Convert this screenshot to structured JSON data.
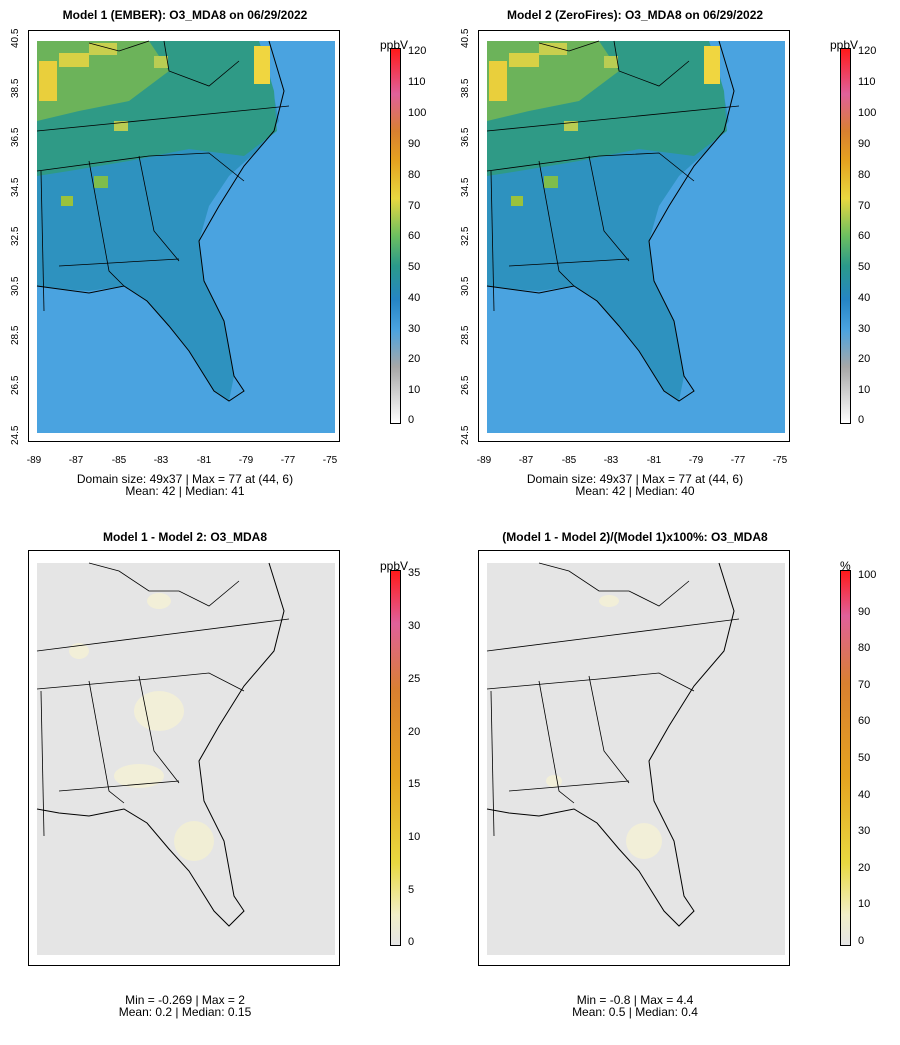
{
  "panels": [
    {
      "title": "Model 1 (EMBER): O3_MDA8 on 06/29/2022",
      "type": "field",
      "unit": "ppbV",
      "stats_line1": "Domain size: 49x37 | Max = 77 at (44, 6)",
      "stats_line2": "Mean: 42 |  Median: 41",
      "yticks": [
        "40.5",
        "38.5",
        "36.5",
        "34.5",
        "32.5",
        "30.5",
        "28.5",
        "26.5",
        "24.5"
      ],
      "xticks": [
        "-89",
        "-87",
        "-85",
        "-83",
        "-81",
        "-79",
        "-77",
        "-75"
      ],
      "colorbar_ticks": [
        "120",
        "110",
        "100",
        "90",
        "80",
        "70",
        "60",
        "50",
        "40",
        "30",
        "20",
        "10",
        "0"
      ]
    },
    {
      "title": "Model 2 (ZeroFires): O3_MDA8 on 06/29/2022",
      "type": "field",
      "unit": "ppbV",
      "stats_line1": "Domain size: 49x37 | Max = 77 at (44, 6)",
      "stats_line2": "Mean: 42 |  Median: 40",
      "yticks": [
        "40.5",
        "38.5",
        "36.5",
        "34.5",
        "32.5",
        "30.5",
        "28.5",
        "26.5",
        "24.5"
      ],
      "xticks": [
        "-89",
        "-87",
        "-85",
        "-83",
        "-81",
        "-79",
        "-77",
        "-75"
      ],
      "colorbar_ticks": [
        "120",
        "110",
        "100",
        "90",
        "80",
        "70",
        "60",
        "50",
        "40",
        "30",
        "20",
        "10",
        "0"
      ]
    },
    {
      "title": "Model 1 - Model 2: O3_MDA8",
      "type": "diff",
      "unit": "ppbV",
      "stats_line1": "Min = -0.269 | Max = 2",
      "stats_line2": "Mean: 0.2 |  Median: 0.15",
      "colorbar_ticks": [
        "35",
        "30",
        "25",
        "20",
        "15",
        "10",
        "5",
        "0"
      ]
    },
    {
      "title": "(Model 1 - Model 2)/(Model 1)x100%: O3_MDA8",
      "type": "diff",
      "unit": "%",
      "stats_line1": "Min = -0.8 | Max = 4.4",
      "stats_line2": "Mean: 0.5 |  Median: 0.4",
      "colorbar_ticks": [
        "100",
        "90",
        "80",
        "70",
        "60",
        "50",
        "40",
        "30",
        "20",
        "10",
        "0"
      ]
    }
  ],
  "colors": {
    "ocean": "#4aa3e0",
    "land_low": "#2f8fc7",
    "land_mid": "#2a9a8a",
    "land_high": "#9ac23c",
    "hot": "#f0d640",
    "diff_bg": "#e5e5e5",
    "diff_spot": "#f2efd8"
  }
}
